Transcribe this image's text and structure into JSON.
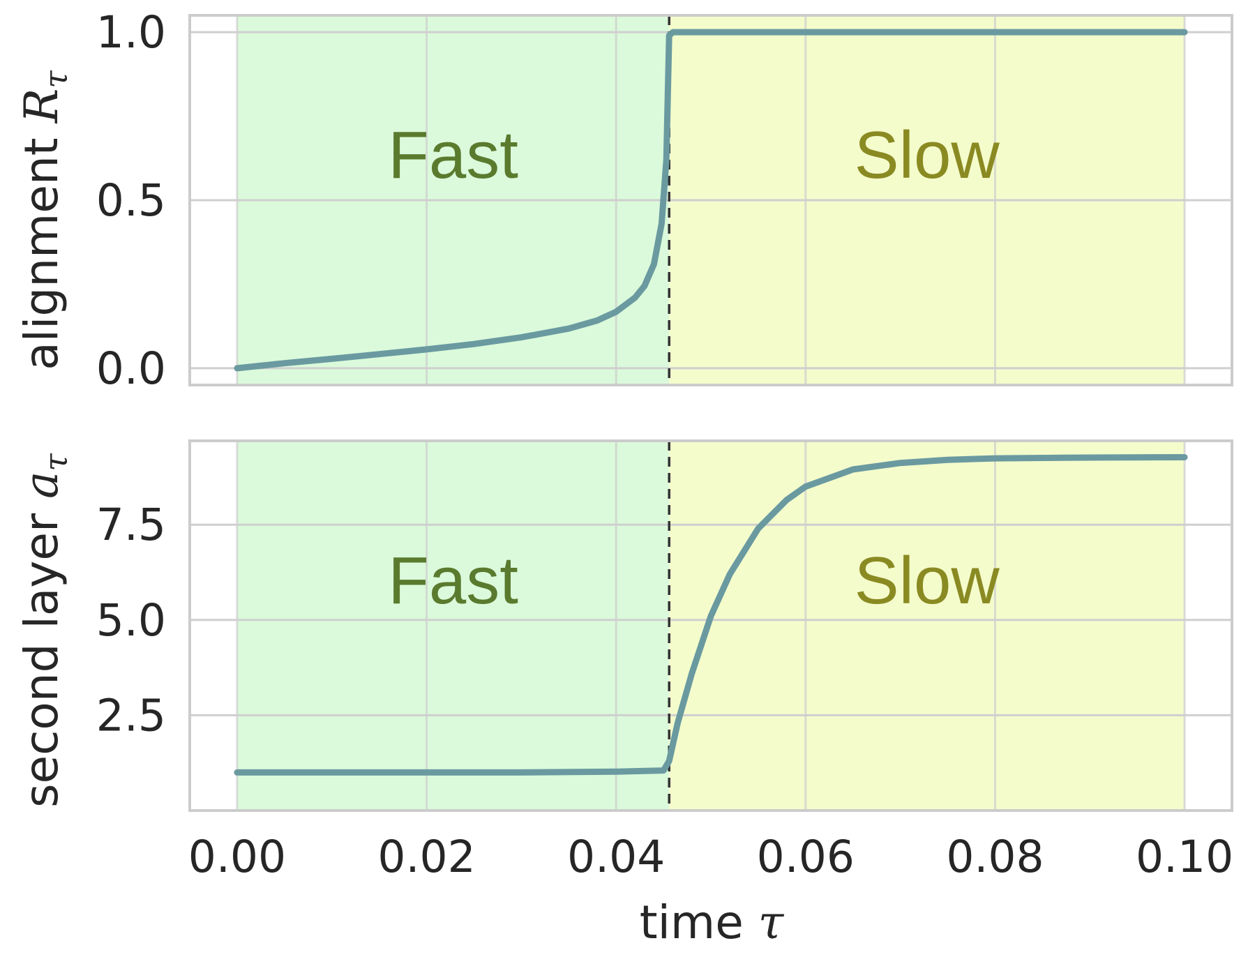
{
  "colors": {
    "fast_region": "#dbfadb",
    "slow_region": "#f4fccc",
    "fast_text": "#5a7a2e",
    "slow_text": "#8a8a22",
    "curve": "#6a9aa0",
    "frame": "#cccccc",
    "grid": "#cfcfcf",
    "divider": "#333333"
  },
  "shared": {
    "xlabel": "time τ",
    "xlabel_text": "time ",
    "xlabel_symbol": "τ",
    "x_ticks": [
      "0.00",
      "0.02",
      "0.04",
      "0.06",
      "0.08",
      "0.10"
    ],
    "x_tick_values": [
      0,
      0.02,
      0.04,
      0.06,
      0.08,
      0.1
    ],
    "xlim": [
      -0.005,
      0.105
    ],
    "transition_x": 0.0456
  },
  "chart_data": [
    {
      "type": "line",
      "panel": "top",
      "ylabel": "alignment Rτ",
      "ylabel_text": "alignment ",
      "ylabel_symbol": "R",
      "ylabel_sub": "τ",
      "ylim": [
        -0.05,
        1.05
      ],
      "y_ticks": [
        "0.0",
        "0.5",
        "1.0"
      ],
      "y_tick_values": [
        0,
        0.5,
        1.0
      ],
      "grid": true,
      "regions": [
        {
          "label": "Fast",
          "x_start": 0.0,
          "x_end": 0.0456
        },
        {
          "label": "Slow",
          "x_start": 0.0456,
          "x_end": 0.1
        }
      ],
      "x": [
        0.0,
        0.005,
        0.01,
        0.015,
        0.02,
        0.025,
        0.03,
        0.035,
        0.038,
        0.04,
        0.042,
        0.043,
        0.044,
        0.0448,
        0.0453,
        0.0456,
        0.046,
        0.05,
        0.06,
        0.07,
        0.08,
        0.09,
        0.1
      ],
      "y": [
        0.0,
        0.015,
        0.028,
        0.042,
        0.056,
        0.072,
        0.092,
        0.118,
        0.142,
        0.168,
        0.21,
        0.245,
        0.31,
        0.43,
        0.62,
        0.99,
        1.0,
        1.0,
        1.0,
        1.0,
        1.0,
        1.0,
        1.0
      ]
    },
    {
      "type": "line",
      "panel": "bottom",
      "ylabel": "second layer aτ",
      "ylabel_text": "second layer ",
      "ylabel_symbol": "a",
      "ylabel_sub": "τ",
      "ylim": [
        0.0,
        9.7
      ],
      "y_ticks": [
        "2.5",
        "5.0",
        "7.5"
      ],
      "y_tick_values": [
        2.5,
        5.0,
        7.5
      ],
      "grid": true,
      "regions": [
        {
          "label": "Fast",
          "x_start": 0.0,
          "x_end": 0.0456
        },
        {
          "label": "Slow",
          "x_start": 0.0456,
          "x_end": 0.1
        }
      ],
      "x": [
        0.0,
        0.01,
        0.02,
        0.03,
        0.04,
        0.045,
        0.0456,
        0.0465,
        0.048,
        0.05,
        0.052,
        0.055,
        0.058,
        0.06,
        0.065,
        0.07,
        0.075,
        0.08,
        0.09,
        0.1
      ],
      "y": [
        1.0,
        1.0,
        1.0,
        1.0,
        1.02,
        1.05,
        1.3,
        2.3,
        3.6,
        5.1,
        6.2,
        7.4,
        8.15,
        8.5,
        8.95,
        9.12,
        9.2,
        9.24,
        9.26,
        9.27
      ]
    }
  ]
}
